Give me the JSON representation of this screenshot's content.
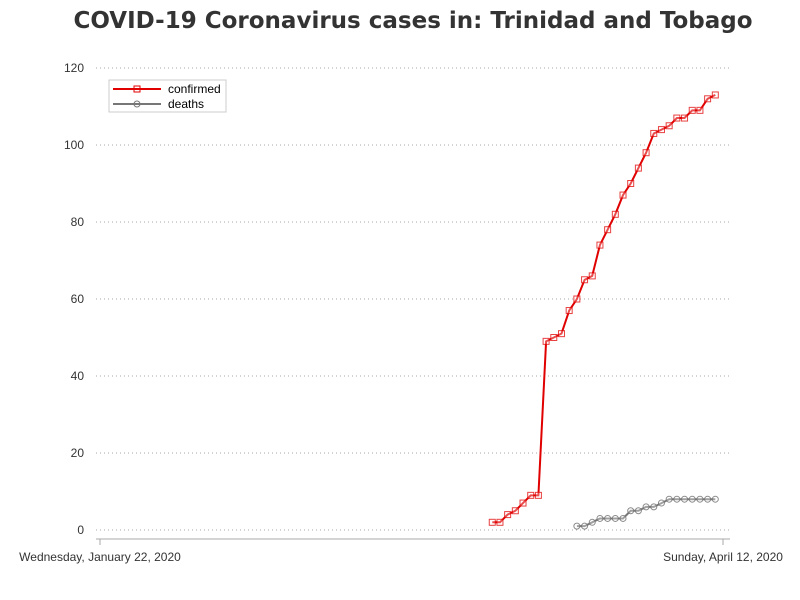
{
  "chart_data": {
    "type": "line",
    "title": "COVID-19 Coronavirus cases in: Trinidad and Tobago",
    "xlabel": "",
    "ylabel": "",
    "x_range": [
      "2020-01-22",
      "2020-04-12"
    ],
    "x_tick_labels": [
      "Wednesday, January 22, 2020",
      "Sunday, April 12, 2020"
    ],
    "ylim": [
      0,
      120
    ],
    "y_ticks": [
      0,
      20,
      40,
      60,
      80,
      100,
      120
    ],
    "grid": "horizontal dotted",
    "legend_position": "top-left",
    "series": [
      {
        "name": "confirmed",
        "color": "#e00000",
        "marker": "square",
        "points": [
          [
            "2020-03-13",
            2
          ],
          [
            "2020-03-14",
            2
          ],
          [
            "2020-03-15",
            4
          ],
          [
            "2020-03-16",
            5
          ],
          [
            "2020-03-17",
            7
          ],
          [
            "2020-03-18",
            9
          ],
          [
            "2020-03-19",
            9
          ],
          [
            "2020-03-20",
            49
          ],
          [
            "2020-03-21",
            50
          ],
          [
            "2020-03-22",
            51
          ],
          [
            "2020-03-23",
            57
          ],
          [
            "2020-03-24",
            60
          ],
          [
            "2020-03-25",
            65
          ],
          [
            "2020-03-26",
            66
          ],
          [
            "2020-03-27",
            74
          ],
          [
            "2020-03-28",
            78
          ],
          [
            "2020-03-29",
            82
          ],
          [
            "2020-03-30",
            87
          ],
          [
            "2020-03-31",
            90
          ],
          [
            "2020-04-01",
            94
          ],
          [
            "2020-04-02",
            98
          ],
          [
            "2020-04-03",
            103
          ],
          [
            "2020-04-04",
            104
          ],
          [
            "2020-04-05",
            105
          ],
          [
            "2020-04-06",
            107
          ],
          [
            "2020-04-07",
            107
          ],
          [
            "2020-04-08",
            109
          ],
          [
            "2020-04-09",
            109
          ],
          [
            "2020-04-10",
            112
          ],
          [
            "2020-04-11",
            113
          ]
        ]
      },
      {
        "name": "deaths",
        "color": "#777777",
        "marker": "circle",
        "points": [
          [
            "2020-03-24",
            1
          ],
          [
            "2020-03-25",
            1
          ],
          [
            "2020-03-26",
            2
          ],
          [
            "2020-03-27",
            3
          ],
          [
            "2020-03-28",
            3
          ],
          [
            "2020-03-29",
            3
          ],
          [
            "2020-03-30",
            3
          ],
          [
            "2020-03-31",
            5
          ],
          [
            "2020-04-01",
            5
          ],
          [
            "2020-04-02",
            6
          ],
          [
            "2020-04-03",
            6
          ],
          [
            "2020-04-04",
            7
          ],
          [
            "2020-04-05",
            8
          ],
          [
            "2020-04-06",
            8
          ],
          [
            "2020-04-07",
            8
          ],
          [
            "2020-04-08",
            8
          ],
          [
            "2020-04-09",
            8
          ],
          [
            "2020-04-10",
            8
          ],
          [
            "2020-04-11",
            8
          ]
        ]
      }
    ]
  }
}
